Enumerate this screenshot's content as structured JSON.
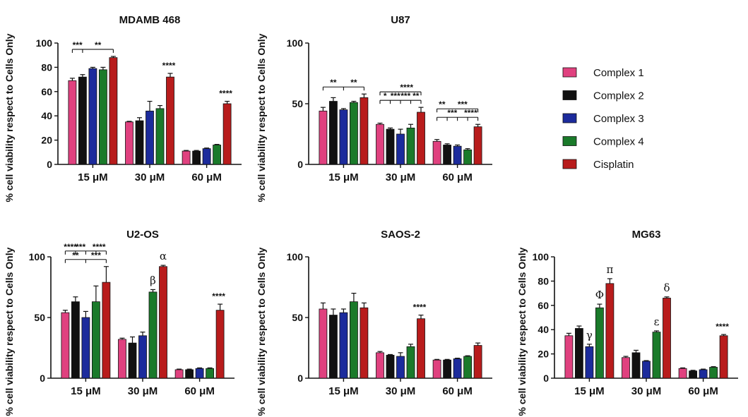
{
  "legend": {
    "items": [
      {
        "name": "Complex 1",
        "color": "#e0417f"
      },
      {
        "name": "Complex 2",
        "color": "#111111"
      },
      {
        "name": "Complex 3",
        "color": "#1c2b9c"
      },
      {
        "name": "Complex 4",
        "color": "#1a7a2a"
      },
      {
        "name": "Cisplatin",
        "color": "#b81c1c"
      }
    ]
  },
  "chart_data": [
    {
      "type": "bar",
      "title": "MDAMB 468",
      "ylabel": "% cell viability respect to Cells Only",
      "categories": [
        "15 μM",
        "30 μM",
        "60 μM"
      ],
      "yticks": [
        0,
        20,
        40,
        60,
        80,
        100
      ],
      "ylim": [
        0,
        100
      ],
      "series": [
        {
          "name": "Complex 1",
          "values": [
            69,
            35,
            11
          ],
          "errors": [
            2,
            0.5,
            0.5
          ]
        },
        {
          "name": "Complex 2",
          "values": [
            72,
            36,
            11
          ],
          "errors": [
            2,
            2.5,
            0.5
          ]
        },
        {
          "name": "Complex 3",
          "values": [
            79,
            44,
            13
          ],
          "errors": [
            1,
            8,
            0.5
          ]
        },
        {
          "name": "Complex 4",
          "values": [
            78,
            46,
            16
          ],
          "errors": [
            2,
            2.5,
            0.5
          ]
        },
        {
          "name": "Cisplatin",
          "values": [
            88,
            72,
            50
          ],
          "errors": [
            1,
            3,
            2
          ]
        }
      ],
      "annotations": [
        {
          "text": "****",
          "category": 1,
          "series": 4
        },
        {
          "text": "****",
          "category": 2,
          "series": 4
        }
      ],
      "brackets": [
        {
          "category": 0,
          "from": 0,
          "to": 4,
          "ticks": [
            0,
            1,
            4
          ],
          "level": 0,
          "labels": [
            {
              "text": "***",
              "pos": 0.5
            },
            {
              "text": "**",
              "pos": 2.5
            }
          ]
        }
      ]
    },
    {
      "type": "bar",
      "title": "U87",
      "ylabel": "% cell viability respect to Cells Only",
      "categories": [
        "15 μM",
        "30 μM",
        "60 μM"
      ],
      "yticks": [
        0,
        50,
        100
      ],
      "ylim": [
        0,
        100
      ],
      "series": [
        {
          "name": "Complex 1",
          "values": [
            44,
            33,
            19
          ],
          "errors": [
            3,
            1,
            1.5
          ]
        },
        {
          "name": "Complex 2",
          "values": [
            52,
            29,
            16
          ],
          "errors": [
            3,
            1,
            1
          ]
        },
        {
          "name": "Complex 3",
          "values": [
            45,
            25,
            15
          ],
          "errors": [
            1,
            4,
            1
          ]
        },
        {
          "name": "Complex 4",
          "values": [
            51,
            30,
            12
          ],
          "errors": [
            1,
            3,
            1
          ]
        },
        {
          "name": "Cisplatin",
          "values": [
            55,
            43,
            31
          ],
          "errors": [
            3,
            4,
            2
          ]
        }
      ],
      "annotations": [],
      "brackets": [
        {
          "category": 0,
          "from": 0,
          "to": 4,
          "ticks": [
            0,
            2,
            4
          ],
          "level": 0,
          "labels": [
            {
              "text": "**",
              "pos": 1
            },
            {
              "text": "**",
              "pos": 3
            }
          ]
        },
        {
          "category": 1,
          "from": 0,
          "to": 4,
          "ticks": [
            0,
            4
          ],
          "level": 1,
          "labels": [
            {
              "text": "****",
              "pos": 2.6
            }
          ]
        },
        {
          "category": 1,
          "from": 0,
          "to": 4,
          "ticks": [
            0,
            1,
            2,
            3,
            4
          ],
          "level": 0,
          "labels": [
            {
              "text": "*",
              "pos": 0.5
            },
            {
              "text": "***",
              "pos": 1.5
            },
            {
              "text": "***",
              "pos": 2.5
            },
            {
              "text": "**",
              "pos": 3.5
            }
          ]
        },
        {
          "category": 2,
          "from": 0,
          "to": 4,
          "ticks": [
            0,
            4
          ],
          "level": 1,
          "labels": [
            {
              "text": "**",
              "pos": 0.5
            },
            {
              "text": "***",
              "pos": 2.5
            }
          ]
        },
        {
          "category": 2,
          "from": 0,
          "to": 4,
          "ticks": [
            0,
            1,
            2,
            3,
            4
          ],
          "level": 0,
          "labels": [
            {
              "text": "***",
              "pos": 1.5
            },
            {
              "text": "****",
              "pos": 3.3
            }
          ]
        }
      ]
    },
    {
      "type": "bar",
      "title": "U2-OS",
      "ylabel": "% cell viability respect to Cells Only",
      "categories": [
        "15 μM",
        "30 μM",
        "60 μM"
      ],
      "yticks": [
        0,
        50,
        100
      ],
      "ylim": [
        0,
        100
      ],
      "series": [
        {
          "name": "Complex 1",
          "values": [
            54,
            32,
            7
          ],
          "errors": [
            2,
            1,
            0.5
          ]
        },
        {
          "name": "Complex 2",
          "values": [
            63,
            29,
            7
          ],
          "errors": [
            4,
            5,
            0.5
          ]
        },
        {
          "name": "Complex 3",
          "values": [
            50,
            35,
            8
          ],
          "errors": [
            5,
            3,
            0.5
          ]
        },
        {
          "name": "Complex 4",
          "values": [
            63,
            71,
            8
          ],
          "errors": [
            13,
            2,
            0.5
          ]
        },
        {
          "name": "Cisplatin",
          "values": [
            79,
            92,
            56
          ],
          "errors": [
            13,
            1,
            5
          ]
        }
      ],
      "annotations": [
        {
          "text": "β",
          "category": 1,
          "series": 3,
          "greek": true
        },
        {
          "text": "α",
          "category": 1,
          "series": 4,
          "greek": true
        },
        {
          "text": "****",
          "category": 2,
          "series": 4
        }
      ],
      "brackets": [
        {
          "category": 0,
          "from": 0,
          "to": 4,
          "ticks": [
            0,
            1,
            2,
            3,
            4
          ],
          "level": 1,
          "labels": [
            {
              "text": "****",
              "pos": 0.5
            },
            {
              "text": "***",
              "pos": 1.5
            },
            {
              "text": "****",
              "pos": 3.3
            }
          ]
        },
        {
          "category": 0,
          "from": 0,
          "to": 4,
          "ticks": [
            0,
            2,
            4
          ],
          "level": 0,
          "labels": [
            {
              "text": "**",
              "pos": 1
            },
            {
              "text": "***",
              "pos": 3
            }
          ]
        }
      ]
    },
    {
      "type": "bar",
      "title": "SAOS-2",
      "ylabel": "% cell viability respect to Cells Only",
      "categories": [
        "15 μM",
        "30 μM",
        "60 μM"
      ],
      "yticks": [
        0,
        50,
        100
      ],
      "ylim": [
        0,
        100
      ],
      "series": [
        {
          "name": "Complex 1",
          "values": [
            57,
            21,
            15
          ],
          "errors": [
            5,
            1,
            0.5
          ]
        },
        {
          "name": "Complex 2",
          "values": [
            52,
            19,
            15
          ],
          "errors": [
            5,
            0.5,
            0.5
          ]
        },
        {
          "name": "Complex 3",
          "values": [
            54,
            18,
            16
          ],
          "errors": [
            3,
            3,
            0.5
          ]
        },
        {
          "name": "Complex 4",
          "values": [
            63,
            26,
            18
          ],
          "errors": [
            7,
            2,
            0.5
          ]
        },
        {
          "name": "Cisplatin",
          "values": [
            58,
            49,
            27
          ],
          "errors": [
            4,
            3,
            2
          ]
        }
      ],
      "annotations": [
        {
          "text": "****",
          "category": 1,
          "series": 4
        }
      ],
      "brackets": []
    },
    {
      "type": "bar",
      "title": "MG63",
      "ylabel": "% cell viability respect to Cells Only",
      "categories": [
        "15 μM",
        "30 μM",
        "60 μM"
      ],
      "yticks": [
        0,
        20,
        40,
        60,
        80,
        100
      ],
      "ylim": [
        0,
        100
      ],
      "series": [
        {
          "name": "Complex 1",
          "values": [
            35,
            17,
            8
          ],
          "errors": [
            2,
            1,
            0.5
          ]
        },
        {
          "name": "Complex 2",
          "values": [
            41,
            21,
            6
          ],
          "errors": [
            2,
            2,
            0.5
          ]
        },
        {
          "name": "Complex 3",
          "values": [
            26,
            14,
            7
          ],
          "errors": [
            2,
            0.5,
            0.5
          ]
        },
        {
          "name": "Complex 4",
          "values": [
            58,
            38,
            9
          ],
          "errors": [
            3,
            1,
            0.5
          ]
        },
        {
          "name": "Cisplatin",
          "values": [
            78,
            66,
            35
          ],
          "errors": [
            4,
            1,
            1
          ]
        }
      ],
      "annotations": [
        {
          "text": "γ",
          "category": 0,
          "series": 2,
          "greek": true
        },
        {
          "text": "Φ",
          "category": 0,
          "series": 3,
          "greek": true
        },
        {
          "text": "π",
          "category": 0,
          "series": 4,
          "greek": true
        },
        {
          "text": "ε",
          "category": 1,
          "series": 3,
          "greek": true
        },
        {
          "text": "δ",
          "category": 1,
          "series": 4,
          "greek": true
        },
        {
          "text": "****",
          "category": 2,
          "series": 4
        }
      ],
      "brackets": []
    }
  ]
}
